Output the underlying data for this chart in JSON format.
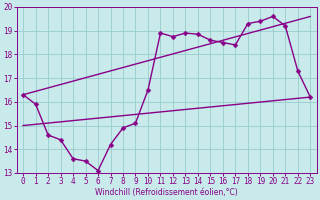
{
  "title": "",
  "xlabel": "Windchill (Refroidissement éolien,°C)",
  "bg_color": "#c8eaea",
  "line_color": "#880088",
  "grid_color": "#99cccc",
  "xlim": [
    -0.5,
    23.5
  ],
  "ylim": [
    13,
    20
  ],
  "xticks": [
    0,
    1,
    2,
    3,
    4,
    5,
    6,
    7,
    8,
    9,
    10,
    11,
    12,
    13,
    14,
    15,
    16,
    17,
    18,
    19,
    20,
    21,
    22,
    23
  ],
  "yticks": [
    13,
    14,
    15,
    16,
    17,
    18,
    19,
    20
  ],
  "line1_x": [
    0,
    1,
    2,
    3,
    4,
    5,
    6,
    7,
    8,
    9,
    10,
    11,
    12,
    13,
    14,
    15,
    16,
    17,
    18,
    19,
    20,
    21,
    22,
    23
  ],
  "line1_y": [
    16.3,
    15.9,
    14.6,
    14.4,
    13.6,
    13.5,
    13.1,
    14.2,
    14.9,
    15.1,
    16.5,
    18.9,
    18.75,
    18.9,
    18.85,
    18.6,
    18.5,
    18.4,
    19.3,
    19.4,
    19.6,
    19.2,
    17.3,
    16.2
  ],
  "line2_x": [
    0,
    23
  ],
  "line2_y": [
    16.3,
    19.6
  ],
  "line3_x": [
    0,
    23
  ],
  "line3_y": [
    15.0,
    16.2
  ],
  "markersize": 2.5,
  "linewidth": 1.0,
  "xlabel_fontsize": 5.5,
  "tick_fontsize": 5.5
}
